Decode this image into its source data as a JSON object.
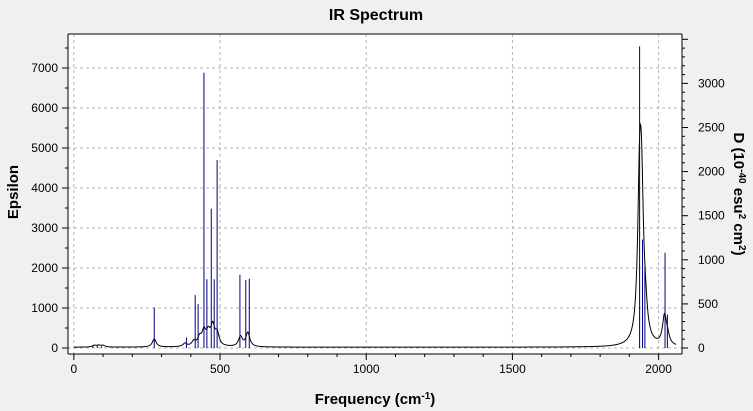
{
  "chart_data": {
    "type": "line",
    "title": "IR Spectrum",
    "xlabel": {
      "main": "Frequency (cm",
      "sup": "-1",
      "tail": ")"
    },
    "ylabel": "Epsilon",
    "y2label": {
      "p1": "D (10",
      "s1": "-40",
      "p2": " esu",
      "s2": "2",
      "p3": " cm",
      "s3": "2",
      "p4": ")"
    },
    "xlim": [
      -20,
      2080
    ],
    "ylim": [
      -150,
      7850
    ],
    "y2lim": [
      -68,
      3560
    ],
    "x_ticks": [
      0,
      500,
      1000,
      1500,
      2000
    ],
    "y_ticks": [
      0,
      1000,
      2000,
      3000,
      4000,
      5000,
      6000,
      7000
    ],
    "y2_ticks": [
      0,
      500,
      1000,
      1500,
      2000,
      2500,
      3000
    ],
    "x_tick_labels": [
      "0",
      "500",
      "1000",
      "1500",
      "2000"
    ],
    "y_tick_labels": [
      "0",
      "1000",
      "2000",
      "3000",
      "4000",
      "5000",
      "6000",
      "7000"
    ],
    "y2_tick_labels": [
      "0",
      "500",
      "1000",
      "1500",
      "2000",
      "2500",
      "3000"
    ],
    "grid": true,
    "colors": {
      "spectrum": "#000000",
      "sticks": "#000080",
      "grid": "#b4b4b4",
      "plot_bg": "#ffffff",
      "page_bg": "#f0f0f0"
    },
    "spectrum_baseline": 20,
    "spectrum_hwhm": 8,
    "spectrum_peaks": [
      {
        "x": 70,
        "h": 40
      },
      {
        "x": 85,
        "h": 40
      },
      {
        "x": 100,
        "h": 40
      },
      {
        "x": 275,
        "h": 200
      },
      {
        "x": 380,
        "h": 80
      },
      {
        "x": 410,
        "h": 120
      },
      {
        "x": 430,
        "h": 200
      },
      {
        "x": 445,
        "h": 350
      },
      {
        "x": 460,
        "h": 300
      },
      {
        "x": 475,
        "h": 480
      },
      {
        "x": 490,
        "h": 300
      },
      {
        "x": 570,
        "h": 250
      },
      {
        "x": 595,
        "h": 350
      },
      {
        "x": 1935,
        "h": 3500
      },
      {
        "x": 1942,
        "h": 3000
      },
      {
        "x": 1955,
        "h": 500
      },
      {
        "x": 2020,
        "h": 700
      },
      {
        "x": 2030,
        "h": 200
      }
    ],
    "sticks": [
      {
        "x": 65,
        "d": 25
      },
      {
        "x": 80,
        "d": 30
      },
      {
        "x": 95,
        "d": 20
      },
      {
        "x": 275,
        "d": 460
      },
      {
        "x": 385,
        "d": 120
      },
      {
        "x": 415,
        "d": 600
      },
      {
        "x": 425,
        "d": 500
      },
      {
        "x": 445,
        "d": 3120
      },
      {
        "x": 455,
        "d": 780
      },
      {
        "x": 470,
        "d": 1580
      },
      {
        "x": 480,
        "d": 780
      },
      {
        "x": 490,
        "d": 2130
      },
      {
        "x": 568,
        "d": 830
      },
      {
        "x": 588,
        "d": 770
      },
      {
        "x": 600,
        "d": 785
      },
      {
        "x": 1935,
        "d": 3420
      },
      {
        "x": 1945,
        "d": 1230
      },
      {
        "x": 1953,
        "d": 920
      },
      {
        "x": 2022,
        "d": 1080
      },
      {
        "x": 2030,
        "d": 380
      }
    ]
  }
}
